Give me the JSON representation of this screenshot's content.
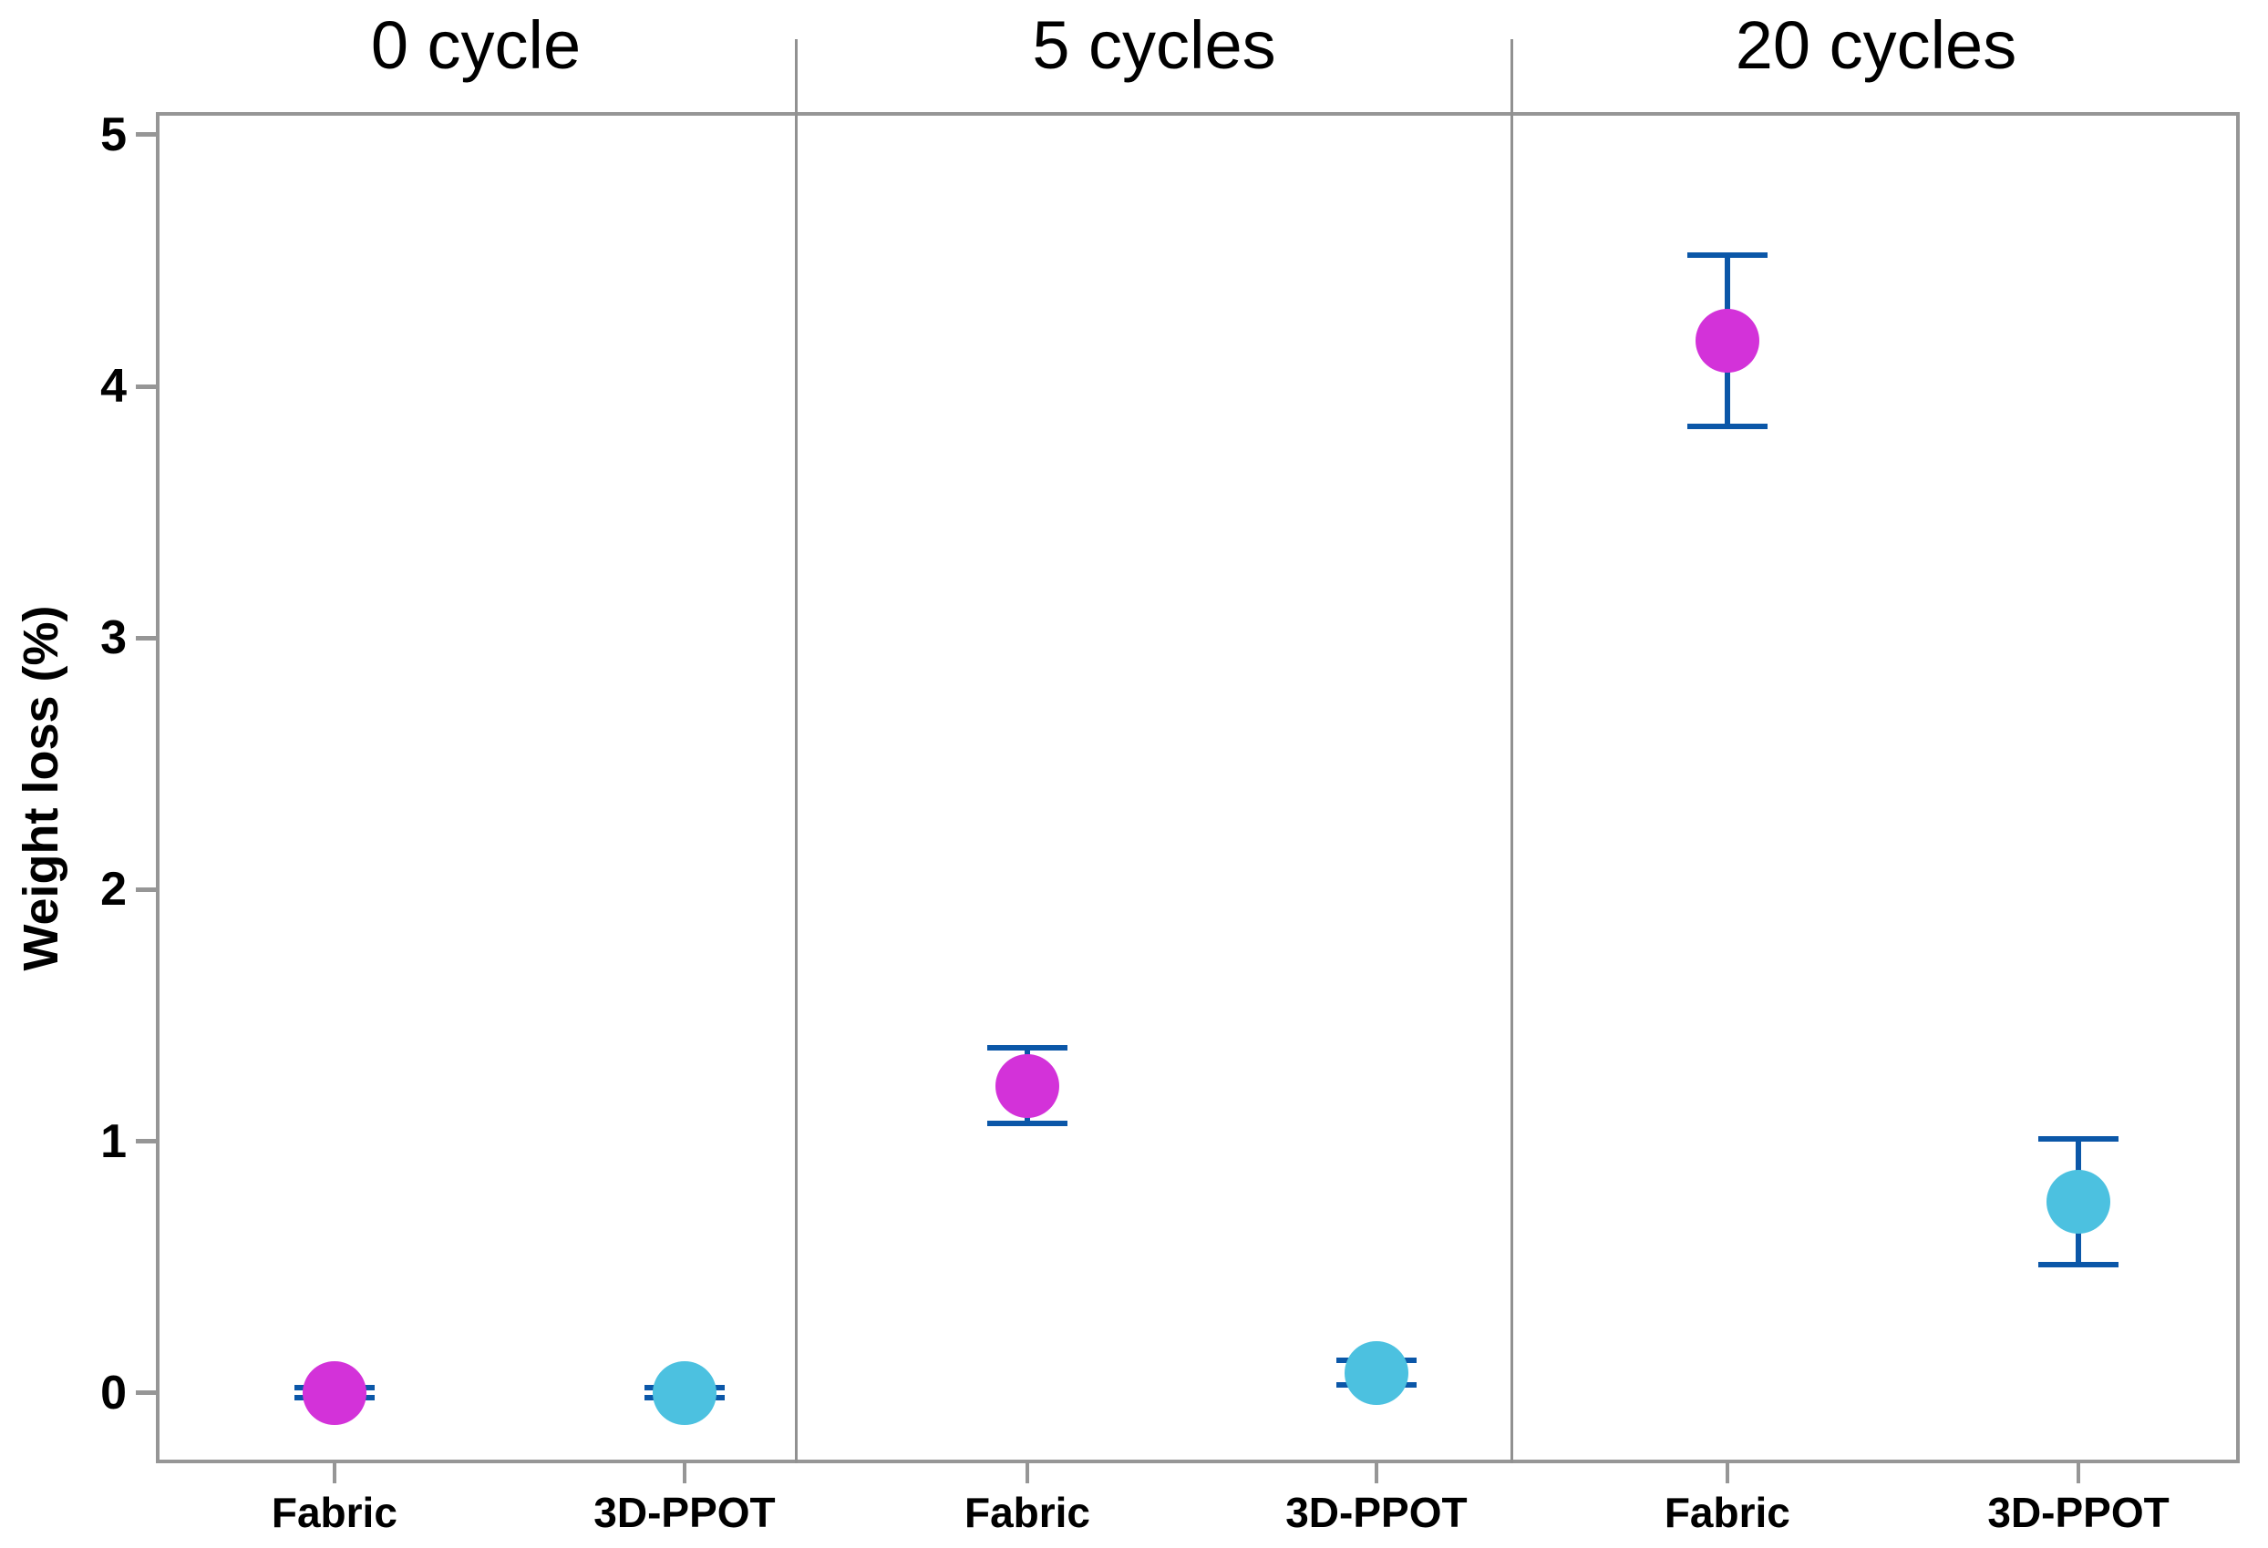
{
  "chart_data": {
    "type": "scatter",
    "title": "",
    "ylabel": "Weight loss (%)",
    "xlabel": "",
    "ylim": [
      -0.28,
      5.09
    ],
    "yticks": [
      0,
      1,
      2,
      3,
      4,
      5
    ],
    "grid": false,
    "legend": "none",
    "categories": [
      "Fabric",
      "3D-PPOT"
    ],
    "series_colors": {
      "Fabric": "#d332d9",
      "3D-PPOT": "#4cc1e0"
    },
    "errorbar_color": "#0b57a8",
    "frame_color": "#969696",
    "panels": [
      {
        "title": "0 cycle",
        "points": [
          {
            "category": "Fabric",
            "value": 0.0,
            "error": 0.02,
            "color": "#d332d9"
          },
          {
            "category": "3D-PPOT",
            "value": 0.0,
            "error": 0.02,
            "color": "#4cc1e0"
          }
        ]
      },
      {
        "title": "5 cycles",
        "points": [
          {
            "category": "Fabric",
            "value": 1.22,
            "error": 0.15,
            "color": "#d332d9"
          },
          {
            "category": "3D-PPOT",
            "value": 0.08,
            "error": 0.05,
            "color": "#4cc1e0"
          }
        ]
      },
      {
        "title": "20 cycles",
        "points": [
          {
            "category": "Fabric",
            "value": 4.18,
            "error": 0.34,
            "color": "#d332d9"
          },
          {
            "category": "3D-PPOT",
            "value": 0.76,
            "error": 0.25,
            "color": "#4cc1e0"
          }
        ]
      }
    ]
  }
}
